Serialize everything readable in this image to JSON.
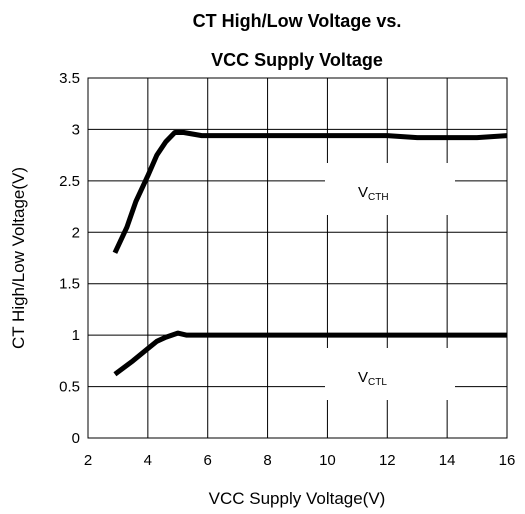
{
  "chart_data": {
    "type": "line",
    "title": [
      "CT High/Low Voltage vs.",
      "VCC Supply Voltage"
    ],
    "xlabel": "VCC Supply Voltage(V)",
    "ylabel": "CT High/Low Voltage(V)",
    "xlim": [
      2,
      16
    ],
    "xticks": [
      2,
      4,
      6,
      8,
      10,
      12,
      14,
      16
    ],
    "ylim": [
      0,
      3.5
    ],
    "yticks": [
      0,
      0.5,
      1,
      1.5,
      2,
      2.5,
      3,
      3.5
    ],
    "grid": true,
    "series": [
      {
        "color": "#000000",
        "x": [
          2.9,
          3.3,
          3.6,
          4.0,
          4.3,
          4.6,
          4.9,
          5.2,
          5.8,
          8,
          10,
          12,
          13,
          14,
          15,
          16
        ],
        "values": [
          1.8,
          2.05,
          2.3,
          2.55,
          2.75,
          2.88,
          2.97,
          2.97,
          2.94,
          2.94,
          2.94,
          2.94,
          2.92,
          2.92,
          2.92,
          2.94
        ]
      },
      {
        "color": "#000000",
        "x": [
          2.9,
          3.5,
          4.0,
          4.3,
          4.6,
          5.0,
          5.3,
          6,
          16
        ],
        "values": [
          0.62,
          0.75,
          0.87,
          0.94,
          0.98,
          1.02,
          1.0,
          1.0,
          1.0
        ]
      }
    ],
    "annotations": [
      {
        "text": "V",
        "subscript": "CTH"
      },
      {
        "text": "V",
        "subscript": "CTL"
      }
    ]
  }
}
